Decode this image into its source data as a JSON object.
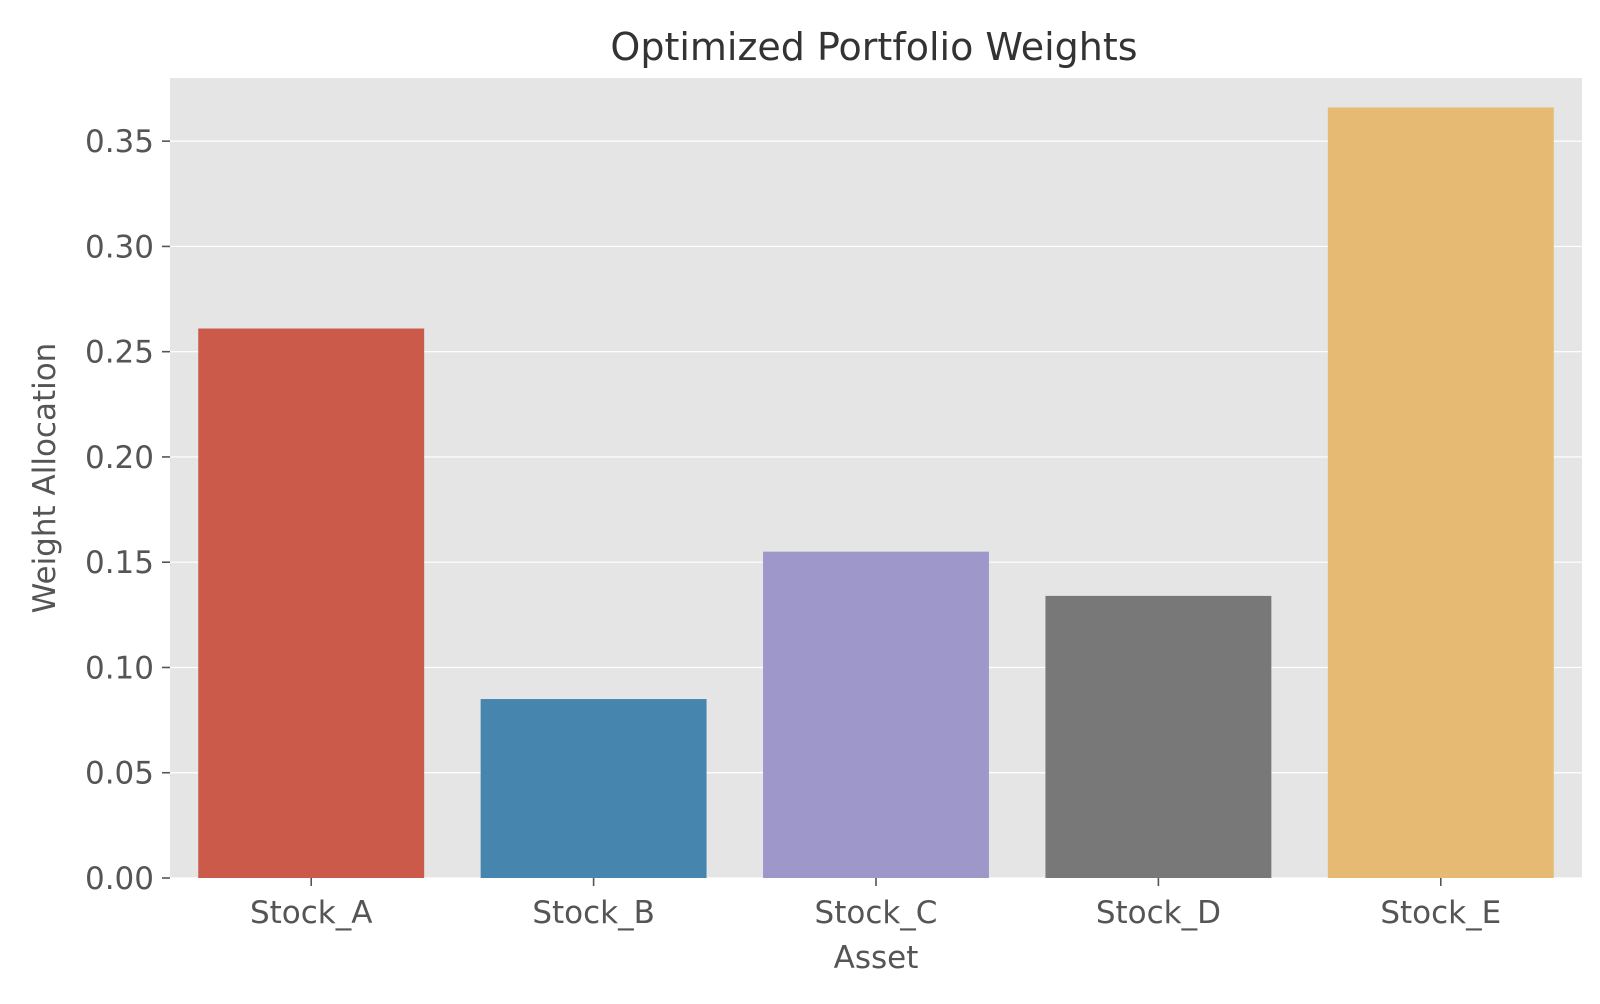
{
  "chart_data": {
    "type": "bar",
    "title": "Optimized Portfolio Weights",
    "xlabel": "Asset",
    "ylabel": "Weight Allocation",
    "categories": [
      "Stock_A",
      "Stock_B",
      "Stock_C",
      "Stock_D",
      "Stock_E"
    ],
    "values": [
      0.261,
      0.085,
      0.155,
      0.134,
      0.366
    ],
    "colors": [
      "#CB5A4A",
      "#4686AE",
      "#9E98CA",
      "#787878",
      "#E6BA72"
    ],
    "ylim": [
      0,
      0.38
    ],
    "yticks": [
      0.0,
      0.05,
      0.1,
      0.15,
      0.2,
      0.25,
      0.3,
      0.35
    ],
    "ytick_labels": [
      "0.00",
      "0.05",
      "0.10",
      "0.15",
      "0.20",
      "0.25",
      "0.30",
      "0.35"
    ],
    "grid": true,
    "legend": "none",
    "style": {
      "plot_background": "#E5E5E5",
      "grid_color": "#FFFFFF",
      "text_color": "#555555",
      "title_color": "#333333"
    }
  }
}
